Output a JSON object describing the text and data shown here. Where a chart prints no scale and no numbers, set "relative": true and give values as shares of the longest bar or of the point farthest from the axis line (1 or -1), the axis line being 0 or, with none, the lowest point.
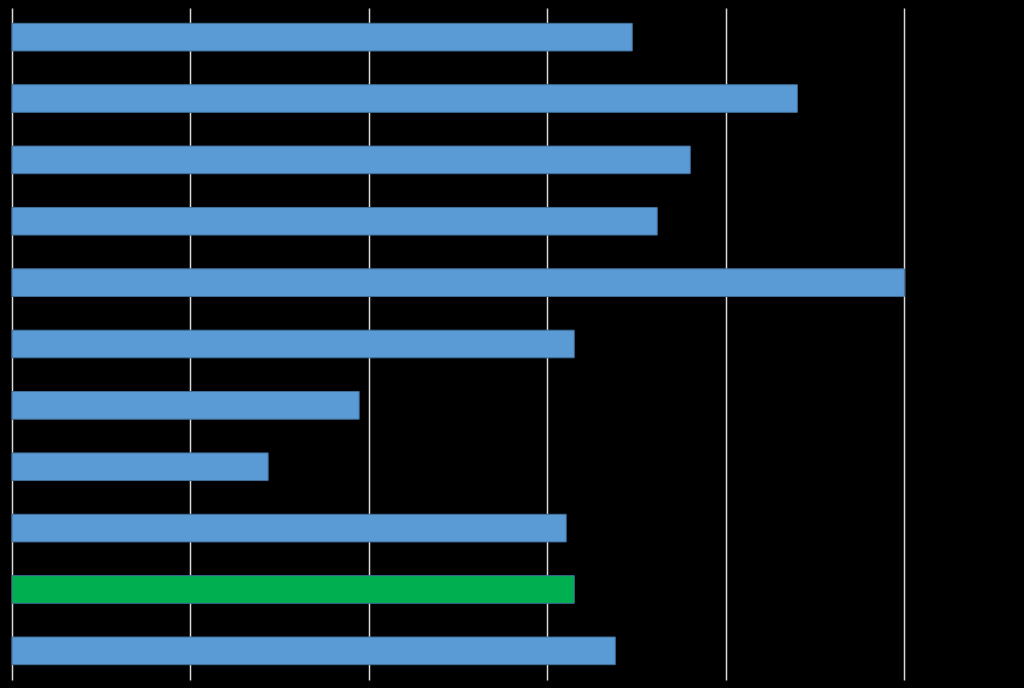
{
  "chart_data": {
    "type": "bar",
    "orientation": "horizontal",
    "relative": true,
    "grid": "x",
    "categories": [
      null,
      null,
      null,
      null,
      null,
      null,
      null,
      null,
      null,
      null,
      null
    ],
    "values": [
      0.695,
      0.88,
      0.76,
      0.723,
      1,
      0.63,
      0.389,
      0.287,
      0.621,
      0.63,
      0.676
    ],
    "colors": [
      "#5b9bd5",
      "#5b9bd5",
      "#5b9bd5",
      "#5b9bd5",
      "#5b9bd5",
      "#5b9bd5",
      "#5b9bd5",
      "#5b9bd5",
      "#5b9bd5",
      "#00b050",
      "#5b9bd5"
    ]
  }
}
